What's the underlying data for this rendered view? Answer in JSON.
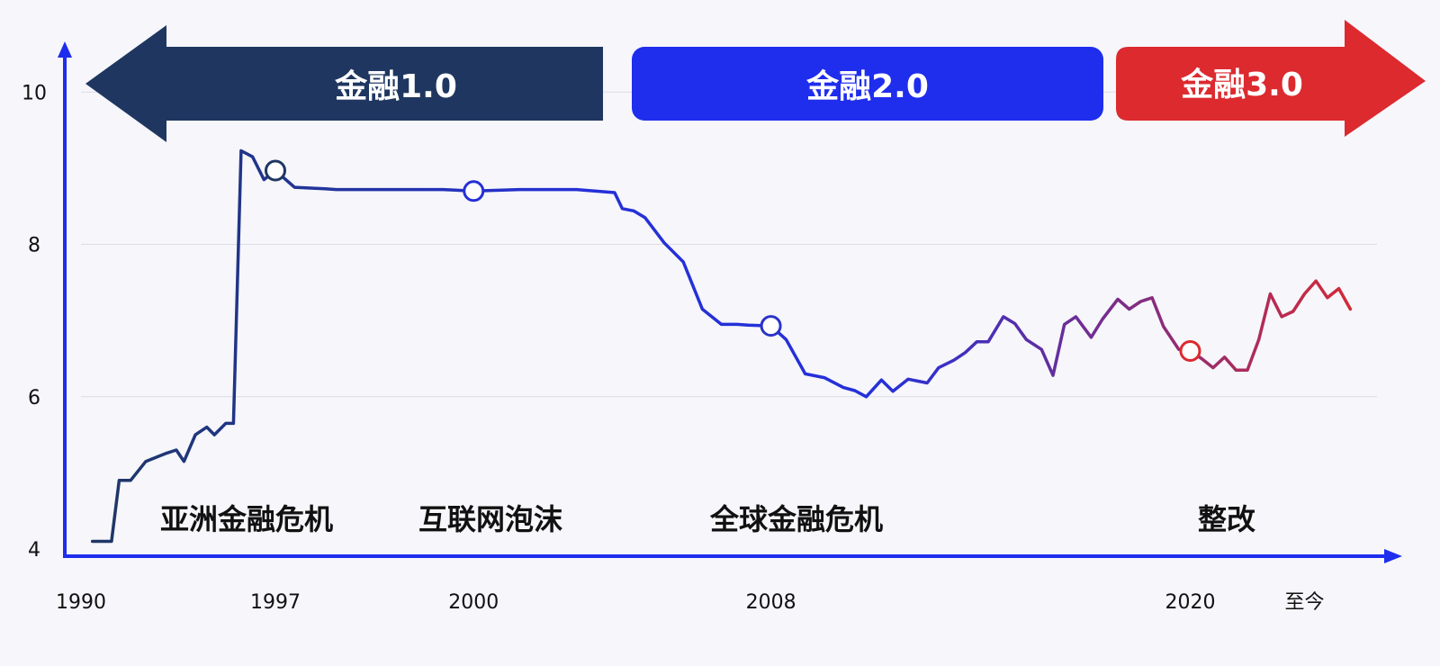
{
  "chart_data": {
    "type": "line",
    "xlim": [
      1990,
      2024
    ],
    "ylim": [
      4,
      10.5
    ],
    "y_ticks": [
      "4",
      "6",
      "8",
      "10"
    ],
    "y_tick_values": [
      4,
      6,
      8,
      10
    ],
    "x_ticks": [
      {
        "label": "1990",
        "value": 1990
      },
      {
        "label": "1997",
        "value": 1995.1
      },
      {
        "label": "2000",
        "value": 2000.3
      },
      {
        "label": "2008",
        "value": 2008.1
      },
      {
        "label": "2020",
        "value": 2019.1
      },
      {
        "label": "至今",
        "value": 2022.1
      }
    ],
    "grid": true,
    "eras": [
      {
        "label": "金融1.0",
        "color": "#1f3760",
        "shape": "arrow-left"
      },
      {
        "label": "金融2.0",
        "color": "#1f2ded",
        "shape": "box"
      },
      {
        "label": "金融3.0",
        "color": "#dc2a2f",
        "shape": "arrow-right"
      }
    ],
    "events": [
      "亚洲金融危机",
      "互联网泡沫",
      "全球金融危机",
      "整改"
    ],
    "markers": [
      {
        "x": 1995.1,
        "y": 8.97,
        "color": "#1f3760"
      },
      {
        "x": 2000.3,
        "y": 8.7,
        "color": "#2530d8"
      },
      {
        "x": 2008.1,
        "y": 6.93,
        "color": "#2a33c8"
      },
      {
        "x": 2019.1,
        "y": 6.6,
        "color": "#dc2a2f"
      }
    ],
    "line_colors": [
      "#1f3760",
      "#2530d8",
      "#dc2a2f"
    ],
    "axis_color": "#1f2ded",
    "series": [
      {
        "x": [
          1990.3,
          1990.8,
          1991.0,
          1991.3,
          1991.7,
          1992.2,
          1992.5,
          1992.7,
          1993.0,
          1993.3,
          1993.5,
          1993.8,
          1994.0,
          1994.2,
          1994.5,
          1994.8,
          1995.1,
          1995.6,
          1996.4,
          1996.7,
          1996.8,
          1997.0,
          1997.3,
          1998.0,
          1998.6,
          1999.5,
          2000.3,
          2001.5,
          2003.0,
          2004.0,
          2004.2,
          2004.5,
          2004.8,
          2005.3,
          2005.8,
          2006.3,
          2006.8,
          2007.2,
          2007.5,
          2008.1,
          2008.5,
          2009.0,
          2009.5,
          2010.0,
          2010.3,
          2010.6,
          2011.0,
          2011.3,
          2011.7,
          2012.2,
          2012.5,
          2012.9,
          2013.2,
          2013.5,
          2013.8,
          2014.2,
          2014.5,
          2014.8,
          2015.2,
          2015.5,
          2015.8,
          2016.1,
          2016.5,
          2016.8,
          2017.2,
          2017.5,
          2017.8,
          2018.1,
          2018.4,
          2018.8,
          2019.1,
          2019.4,
          2019.7,
          2020.0,
          2020.3,
          2020.6,
          2020.9,
          2021.2,
          2021.5,
          2021.8,
          2022.1,
          2022.4,
          2022.7,
          2023.0,
          2023.3
        ],
        "y": [
          4.1,
          4.1,
          4.9,
          4.9,
          5.15,
          5.25,
          5.3,
          5.15,
          5.5,
          5.6,
          5.5,
          5.65,
          5.65,
          9.23,
          9.15,
          8.85,
          8.97,
          8.75,
          8.73,
          8.72,
          8.72,
          8.72,
          8.72,
          8.72,
          8.72,
          8.72,
          8.7,
          8.72,
          8.72,
          8.68,
          8.47,
          8.44,
          8.35,
          8.02,
          7.77,
          7.15,
          6.95,
          6.95,
          6.94,
          6.93,
          6.75,
          6.3,
          6.25,
          6.12,
          6.08,
          6.0,
          6.22,
          6.07,
          6.23,
          6.18,
          6.38,
          6.48,
          6.58,
          6.72,
          6.72,
          7.05,
          6.96,
          6.75,
          6.62,
          6.28,
          6.95,
          7.05,
          6.78,
          7.02,
          7.28,
          7.15,
          7.25,
          7.3,
          6.92,
          6.62,
          6.6,
          6.5,
          6.38,
          6.52,
          6.35,
          6.35,
          6.75,
          7.35,
          7.05,
          7.12,
          7.35,
          7.52,
          7.3,
          7.42,
          7.15
        ]
      }
    ]
  }
}
